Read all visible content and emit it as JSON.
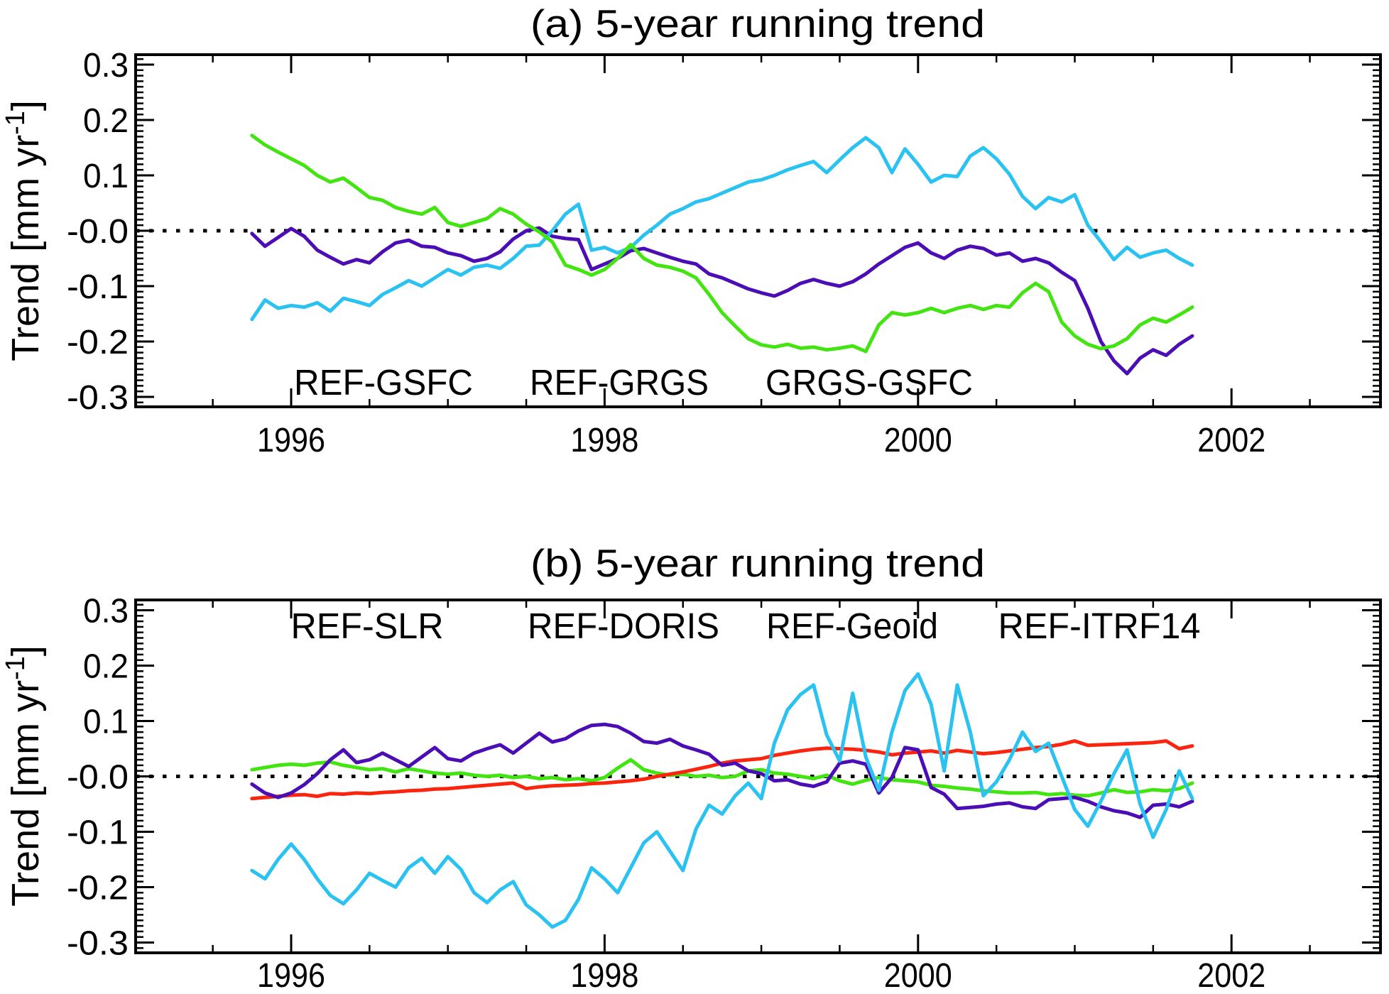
{
  "page": {
    "background": "#ffffff",
    "text_color": "#000000"
  },
  "chart_data": [
    {
      "type": "line",
      "title": "(a) 5-year running trend",
      "xlabel": "",
      "ylabel": {
        "pre": "Trend [mm yr",
        "sup": "-1",
        "post": "]"
      },
      "xlim": [
        1995,
        2003
      ],
      "ylim": [
        -0.318,
        0.318
      ],
      "x_ticks": [
        1996,
        1998,
        2000,
        2002
      ],
      "x_minor_step": 0.5,
      "y_ticks": [
        0.3,
        0.2,
        0.1,
        0.0,
        -0.1,
        -0.2,
        -0.3
      ],
      "y_tick_labels": [
        "0.3",
        "0.2",
        "0.1",
        "-0.0",
        "-0.1",
        "-0.2",
        "-0.3"
      ],
      "y_minor_step": 0.01,
      "grid": false,
      "zero_line": "dotted",
      "legend_position": "inside-bottom",
      "x_start": 1995.75,
      "x_step": 0.0833333,
      "series": [
        {
          "name": "REF-GSFC",
          "color": "#4b0eb4",
          "values": [
            -0.005,
            -0.028,
            -0.012,
            0.004,
            -0.01,
            -0.035,
            -0.048,
            -0.06,
            -0.052,
            -0.058,
            -0.038,
            -0.022,
            -0.017,
            -0.028,
            -0.03,
            -0.04,
            -0.045,
            -0.055,
            -0.05,
            -0.038,
            -0.015,
            0.0,
            0.005,
            -0.01,
            -0.014,
            -0.016,
            -0.07,
            -0.06,
            -0.05,
            -0.036,
            -0.032,
            -0.04,
            -0.048,
            -0.055,
            -0.06,
            -0.078,
            -0.085,
            -0.095,
            -0.105,
            -0.112,
            -0.118,
            -0.108,
            -0.095,
            -0.088,
            -0.095,
            -0.1,
            -0.092,
            -0.078,
            -0.06,
            -0.045,
            -0.03,
            -0.022,
            -0.04,
            -0.05,
            -0.035,
            -0.028,
            -0.032,
            -0.044,
            -0.04,
            -0.055,
            -0.05,
            -0.058,
            -0.075,
            -0.09,
            -0.14,
            -0.2,
            -0.235,
            -0.258,
            -0.23,
            -0.215,
            -0.225,
            -0.205,
            -0.19
          ]
        },
        {
          "name": "REF-GRGS",
          "color": "#29c2f1",
          "values": [
            -0.16,
            -0.125,
            -0.14,
            -0.135,
            -0.138,
            -0.13,
            -0.145,
            -0.122,
            -0.128,
            -0.135,
            -0.115,
            -0.103,
            -0.09,
            -0.1,
            -0.085,
            -0.07,
            -0.08,
            -0.066,
            -0.062,
            -0.068,
            -0.05,
            -0.028,
            -0.026,
            0.0,
            0.03,
            0.048,
            -0.035,
            -0.03,
            -0.04,
            -0.03,
            -0.008,
            0.01,
            0.03,
            0.04,
            0.052,
            0.058,
            0.068,
            0.078,
            0.088,
            0.092,
            0.1,
            0.11,
            0.118,
            0.125,
            0.105,
            0.128,
            0.15,
            0.168,
            0.15,
            0.105,
            0.148,
            0.12,
            0.088,
            0.1,
            0.098,
            0.135,
            0.15,
            0.13,
            0.102,
            0.062,
            0.04,
            0.06,
            0.052,
            0.065,
            0.01,
            -0.02,
            -0.052,
            -0.03,
            -0.048,
            -0.04,
            -0.035,
            -0.05,
            -0.062
          ]
        },
        {
          "name": "GRGS-GSFC",
          "color": "#43e412",
          "values": [
            0.172,
            0.155,
            0.142,
            0.13,
            0.118,
            0.1,
            0.088,
            0.095,
            0.078,
            0.06,
            0.055,
            0.042,
            0.035,
            0.03,
            0.042,
            0.015,
            0.008,
            0.015,
            0.022,
            0.04,
            0.03,
            0.012,
            -0.002,
            -0.02,
            -0.062,
            -0.07,
            -0.08,
            -0.07,
            -0.05,
            -0.025,
            -0.05,
            -0.062,
            -0.066,
            -0.073,
            -0.085,
            -0.115,
            -0.148,
            -0.172,
            -0.195,
            -0.206,
            -0.21,
            -0.205,
            -0.212,
            -0.21,
            -0.215,
            -0.212,
            -0.208,
            -0.218,
            -0.17,
            -0.148,
            -0.152,
            -0.148,
            -0.14,
            -0.148,
            -0.14,
            -0.135,
            -0.142,
            -0.135,
            -0.138,
            -0.112,
            -0.095,
            -0.11,
            -0.165,
            -0.19,
            -0.205,
            -0.213,
            -0.208,
            -0.195,
            -0.17,
            -0.158,
            -0.165,
            -0.152,
            -0.138
          ]
        }
      ]
    },
    {
      "type": "line",
      "title": "(b) 5-year running trend",
      "xlabel": "",
      "ylabel": {
        "pre": "Trend [mm yr",
        "sup": "-1",
        "post": "]"
      },
      "xlim": [
        1995,
        2003
      ],
      "ylim": [
        -0.318,
        0.318
      ],
      "x_ticks": [
        1996,
        1998,
        2000,
        2002
      ],
      "x_minor_step": 0.5,
      "y_ticks": [
        0.3,
        0.2,
        0.1,
        0.0,
        -0.1,
        -0.2,
        -0.3
      ],
      "y_tick_labels": [
        "0.3",
        "0.2",
        "0.1",
        "-0.0",
        "-0.1",
        "-0.2",
        "-0.3"
      ],
      "y_minor_step": 0.01,
      "grid": false,
      "zero_line": "dotted",
      "legend_position": "inside-top",
      "x_start": 1995.75,
      "x_step": 0.0833333,
      "series": [
        {
          "name": "REF-SLR",
          "color": "#4b0eb4",
          "values": [
            -0.014,
            -0.03,
            -0.038,
            -0.03,
            -0.015,
            0.005,
            0.03,
            0.048,
            0.025,
            0.03,
            0.042,
            0.03,
            0.018,
            0.035,
            0.052,
            0.032,
            0.028,
            0.042,
            0.05,
            0.057,
            0.042,
            0.06,
            0.078,
            0.062,
            0.068,
            0.082,
            0.092,
            0.094,
            0.09,
            0.078,
            0.063,
            0.06,
            0.067,
            0.055,
            0.048,
            0.04,
            0.02,
            0.024,
            0.01,
            0.005,
            -0.008,
            -0.006,
            -0.014,
            -0.018,
            -0.01,
            0.024,
            0.028,
            0.022,
            -0.03,
            -0.002,
            0.052,
            0.048,
            -0.02,
            -0.032,
            -0.058,
            -0.056,
            -0.054,
            -0.05,
            -0.048,
            -0.055,
            -0.058,
            -0.042,
            -0.04,
            -0.038,
            -0.045,
            -0.055,
            -0.062,
            -0.066,
            -0.074,
            -0.052,
            -0.05,
            -0.055,
            -0.045
          ]
        },
        {
          "name": "REF-DORIS",
          "color": "#29c2f1",
          "values": [
            -0.17,
            -0.185,
            -0.15,
            -0.122,
            -0.15,
            -0.185,
            -0.215,
            -0.23,
            -0.205,
            -0.175,
            -0.188,
            -0.2,
            -0.165,
            -0.148,
            -0.175,
            -0.145,
            -0.168,
            -0.21,
            -0.228,
            -0.205,
            -0.19,
            -0.232,
            -0.25,
            -0.272,
            -0.26,
            -0.222,
            -0.165,
            -0.185,
            -0.21,
            -0.165,
            -0.12,
            -0.1,
            -0.135,
            -0.17,
            -0.095,
            -0.052,
            -0.068,
            -0.035,
            -0.012,
            -0.04,
            0.06,
            0.12,
            0.148,
            0.165,
            0.075,
            0.028,
            0.15,
            0.035,
            -0.025,
            0.08,
            0.155,
            0.185,
            0.13,
            0.01,
            0.165,
            0.08,
            -0.035,
            -0.01,
            0.03,
            0.08,
            0.045,
            0.06,
            0.0,
            -0.06,
            -0.09,
            -0.045,
            0.005,
            0.048,
            -0.05,
            -0.11,
            -0.06,
            0.01,
            -0.04
          ]
        },
        {
          "name": "REF-Geoid",
          "color": "#43e412",
          "values": [
            0.012,
            0.016,
            0.02,
            0.022,
            0.02,
            0.024,
            0.026,
            0.02,
            0.016,
            0.012,
            0.014,
            0.008,
            0.014,
            0.01,
            0.006,
            0.004,
            0.006,
            0.002,
            0.0,
            0.002,
            -0.002,
            0.0,
            -0.004,
            -0.002,
            -0.006,
            -0.004,
            -0.008,
            -0.002,
            0.015,
            0.03,
            0.012,
            0.006,
            0.002,
            0.004,
            0.0,
            0.002,
            -0.002,
            0.0,
            0.01,
            0.012,
            0.006,
            0.004,
            0.0,
            -0.004,
            0.002,
            -0.008,
            -0.014,
            -0.007,
            -0.002,
            -0.006,
            -0.008,
            -0.01,
            -0.016,
            -0.018,
            -0.021,
            -0.023,
            -0.026,
            -0.028,
            -0.03,
            -0.03,
            -0.029,
            -0.033,
            -0.031,
            -0.034,
            -0.035,
            -0.03,
            -0.024,
            -0.029,
            -0.028,
            -0.024,
            -0.026,
            -0.022,
            -0.012
          ]
        },
        {
          "name": "REF-ITRF14",
          "color": "#fa250f",
          "values": [
            -0.04,
            -0.038,
            -0.036,
            -0.034,
            -0.033,
            -0.036,
            -0.031,
            -0.032,
            -0.03,
            -0.031,
            -0.029,
            -0.028,
            -0.026,
            -0.025,
            -0.023,
            -0.022,
            -0.02,
            -0.018,
            -0.016,
            -0.014,
            -0.012,
            -0.022,
            -0.019,
            -0.017,
            -0.016,
            -0.015,
            -0.013,
            -0.012,
            -0.01,
            -0.008,
            -0.005,
            0.0,
            0.004,
            0.008,
            0.013,
            0.018,
            0.024,
            0.028,
            0.03,
            0.032,
            0.038,
            0.042,
            0.046,
            0.049,
            0.051,
            0.05,
            0.049,
            0.047,
            0.044,
            0.039,
            0.042,
            0.044,
            0.046,
            0.042,
            0.047,
            0.044,
            0.041,
            0.043,
            0.046,
            0.049,
            0.052,
            0.054,
            0.058,
            0.064,
            0.056,
            0.057,
            0.058,
            0.059,
            0.06,
            0.061,
            0.064,
            0.05,
            0.055
          ]
        }
      ]
    }
  ]
}
